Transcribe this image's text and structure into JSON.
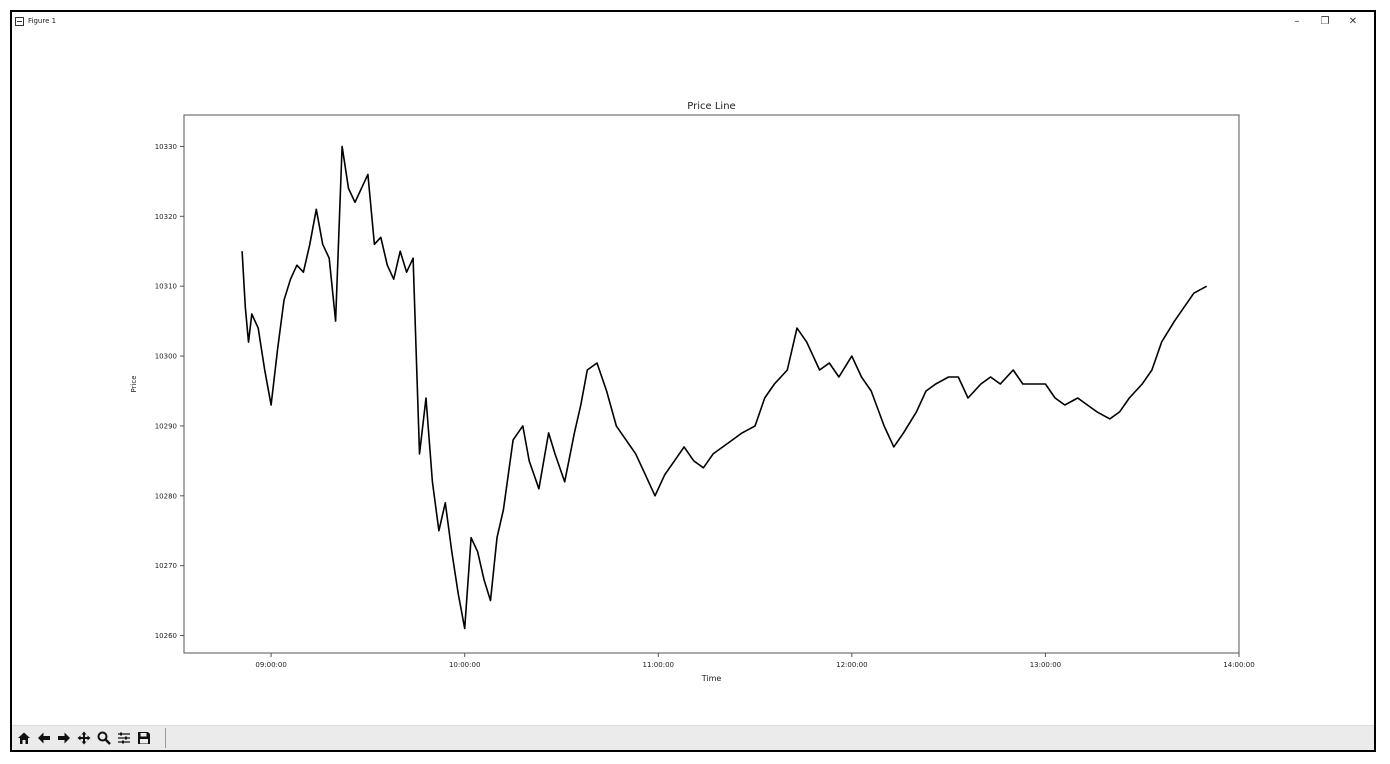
{
  "window": {
    "title": "Figure 1",
    "minimize_label": "–",
    "restore_label": "❐",
    "close_label": "✕"
  },
  "toolbar": {
    "buttons": [
      "home-icon",
      "back-icon",
      "forward-icon",
      "pan-icon",
      "zoom-icon",
      "configure-subplots-icon",
      "save-icon"
    ]
  },
  "colors": {
    "line": "#000000",
    "axes_frame": "#555555",
    "toolbar_bg": "#ebebeb"
  },
  "chart_data": {
    "type": "line",
    "title": "Price Line",
    "xlabel": "Time",
    "ylabel": "Price",
    "xlim": [
      "08:33:00",
      "14:00:00"
    ],
    "ylim": [
      10257.5,
      10334.5
    ],
    "xticks": [
      "09:00:00",
      "10:00:00",
      "11:00:00",
      "12:00:00",
      "13:00:00",
      "14:00:00"
    ],
    "yticks": [
      10260,
      10270,
      10280,
      10290,
      10300,
      10310,
      10320,
      10330
    ],
    "grid": false,
    "legend": "none",
    "series": [
      {
        "x": [
          "08:51:00",
          "08:52:00",
          "08:53:00",
          "08:54:00",
          "08:56:00",
          "08:58:00",
          "09:00:00",
          "09:02:00",
          "09:04:00",
          "09:06:00",
          "09:08:00",
          "09:10:00",
          "09:12:00",
          "09:14:00",
          "09:16:00",
          "09:18:00",
          "09:20:00",
          "09:22:00",
          "09:24:00",
          "09:26:00",
          "09:28:00",
          "09:30:00",
          "09:32:00",
          "09:34:00",
          "09:36:00",
          "09:38:00",
          "09:40:00",
          "09:42:00",
          "09:44:00",
          "09:46:00",
          "09:48:00",
          "09:50:00",
          "09:52:00",
          "09:54:00",
          "09:56:00",
          "09:58:00",
          "10:00:00",
          "10:02:00",
          "10:04:00",
          "10:06:00",
          "10:08:00",
          "10:10:00",
          "10:12:00",
          "10:15:00",
          "10:18:00",
          "10:20:00",
          "10:23:00",
          "10:26:00",
          "10:28:00",
          "10:31:00",
          "10:34:00",
          "10:36:00",
          "10:38:00",
          "10:41:00",
          "10:44:00",
          "10:47:00",
          "10:50:00",
          "10:53:00",
          "10:56:00",
          "10:59:00",
          "11:02:00",
          "11:05:00",
          "11:08:00",
          "11:11:00",
          "11:14:00",
          "11:17:00",
          "11:20:00",
          "11:23:00",
          "11:26:00",
          "11:30:00",
          "11:33:00",
          "11:36:00",
          "11:40:00",
          "11:43:00",
          "11:46:00",
          "11:50:00",
          "11:53:00",
          "11:56:00",
          "12:00:00",
          "12:03:00",
          "12:06:00",
          "12:10:00",
          "12:13:00",
          "12:16:00",
          "12:20:00",
          "12:23:00",
          "12:26:00",
          "12:30:00",
          "12:33:00",
          "12:36:00",
          "12:40:00",
          "12:43:00",
          "12:46:00",
          "12:50:00",
          "12:53:00",
          "12:56:00",
          "13:00:00",
          "13:03:00",
          "13:06:00",
          "13:10:00",
          "13:13:00",
          "13:16:00",
          "13:20:00",
          "13:23:00",
          "13:26:00",
          "13:30:00",
          "13:33:00",
          "13:36:00",
          "13:40:00",
          "13:43:00",
          "13:46:00",
          "13:50:00"
        ],
        "y": [
          10315,
          10307,
          10302,
          10306,
          10304,
          10298,
          10293,
          10301,
          10308,
          10311,
          10313,
          10312,
          10316,
          10321,
          10316,
          10314,
          10305,
          10330,
          10324,
          10322,
          10324,
          10326,
          10316,
          10317,
          10313,
          10311,
          10315,
          10312,
          10314,
          10286,
          10294,
          10282,
          10275,
          10279,
          10272,
          10266,
          10261,
          10274,
          10272,
          10268,
          10265,
          10274,
          10278,
          10288,
          10290,
          10285,
          10281,
          10289,
          10286,
          10282,
          10289,
          10293,
          10298,
          10299,
          10295,
          10290,
          10288,
          10286,
          10283,
          10280,
          10283,
          10285,
          10287,
          10285,
          10284,
          10286,
          10287,
          10288,
          10289,
          10290,
          10294,
          10296,
          10298,
          10304,
          10302,
          10298,
          10299,
          10297,
          10300,
          10297,
          10295,
          10290,
          10287,
          10289,
          10292,
          10295,
          10296,
          10297,
          10297,
          10294,
          10296,
          10297,
          10296,
          10298,
          10296,
          10296,
          10296,
          10294,
          10293,
          10294,
          10293,
          10292,
          10291,
          10292,
          10294,
          10296,
          10298,
          10302,
          10305,
          10307,
          10309,
          10310
        ]
      }
    ]
  }
}
